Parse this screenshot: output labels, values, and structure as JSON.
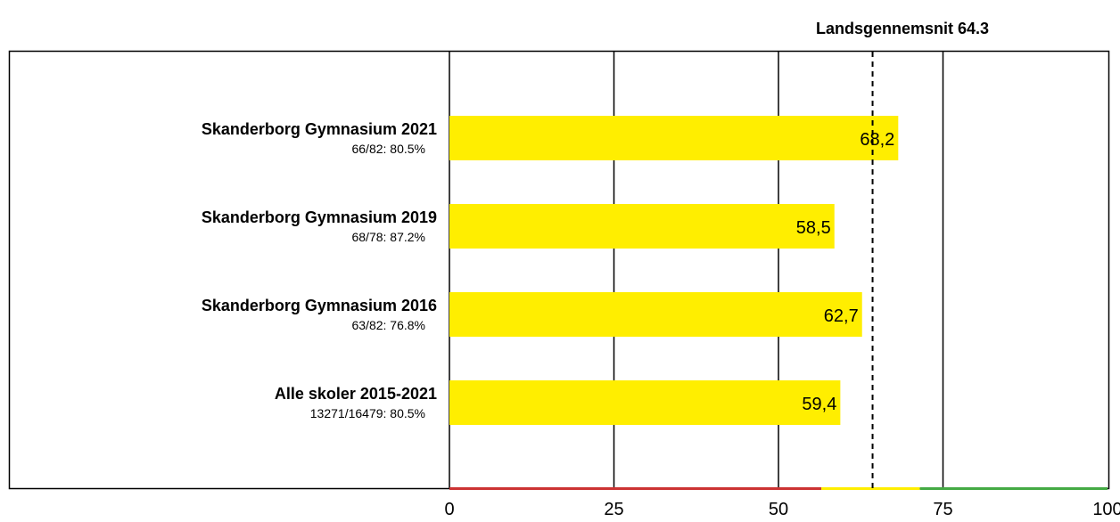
{
  "chart_data": {
    "type": "bar",
    "orientation": "horizontal",
    "reference_line": {
      "label": "Landsgennemsnit 64.3",
      "value": 64.3
    },
    "categories": [
      {
        "name": "Skanderborg Gymnasium 2021",
        "sub": "66/82: 80.5%",
        "value": 68.2,
        "value_label": "68,2"
      },
      {
        "name": "Skanderborg Gymnasium 2019",
        "sub": "68/78: 87.2%",
        "value": 58.5,
        "value_label": "58,5"
      },
      {
        "name": "Skanderborg Gymnasium 2016",
        "sub": "63/82: 76.8%",
        "value": 62.7,
        "value_label": "62,7"
      },
      {
        "name": "Alle skoler 2015-2021",
        "sub": "13271/16479: 80.5%",
        "value": 59.4,
        "value_label": "59,4"
      }
    ],
    "xlim": [
      0,
      100
    ],
    "xticks": [
      0,
      25,
      50,
      75,
      100
    ],
    "grid": true,
    "bar_color": "#ffee00",
    "zones": [
      {
        "from": 0,
        "to": 56.5,
        "color": "#cc3333"
      },
      {
        "from": 56.5,
        "to": 71.5,
        "color": "#ffee00"
      },
      {
        "from": 71.5,
        "to": 100,
        "color": "#44aa44"
      }
    ]
  }
}
